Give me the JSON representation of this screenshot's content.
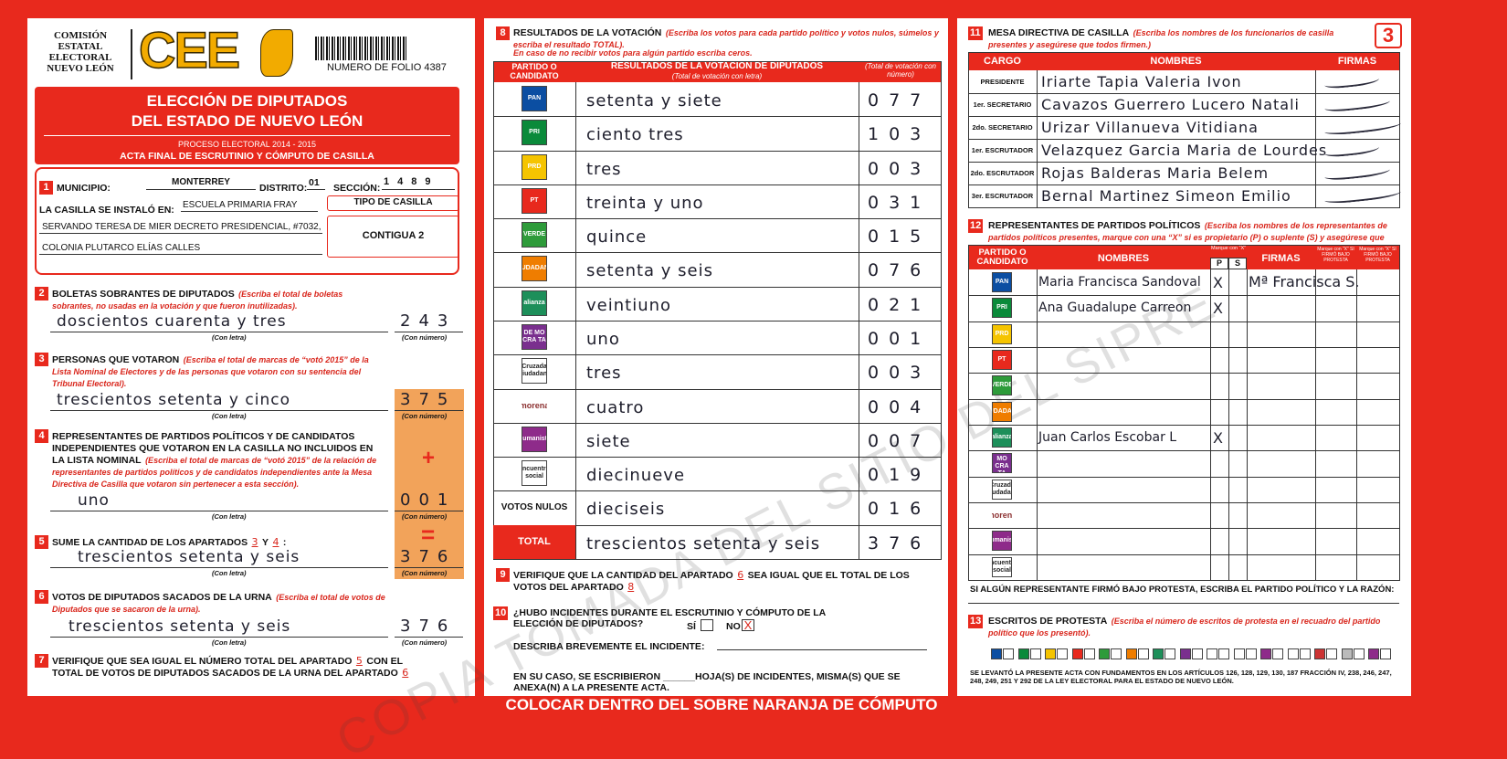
{
  "header": {
    "org": [
      "COMISIÓN",
      "ESTATAL",
      "ELECTORAL",
      "NUEVO LEÓN"
    ],
    "logo": "CEE",
    "folio": "NUMERO DE FOLIO 4387",
    "sheet": "3"
  },
  "title": {
    "line1": "ELECCIÓN DE DIPUTADOS",
    "line2": "DEL ESTADO DE NUEVO LEÓN",
    "process": "PROCESO ELECTORAL 2014 - 2015",
    "acta": "ACTA FINAL DE ESCRUTINIO Y CÓMPUTO DE CASILLA"
  },
  "s1": {
    "num": "1",
    "municipio_label": "MUNICIPIO:",
    "municipio": "MONTERREY",
    "distrito_label": "DISTRITO:",
    "distrito": "01",
    "seccion_label": "SECCIÓN:",
    "seccion": "1489",
    "lugar_label": "LA CASILLA SE INSTALÓ EN:",
    "lugar": [
      "ESCUELA PRIMARIA FRAY",
      "SERVANDO TERESA DE MIER DECRETO PRESIDENCIAL, #7032,",
      "COLONIA PLUTARCO ELÍAS CALLES"
    ],
    "tipo_label": "TIPO DE CASILLA",
    "tipo": "CONTIGUA 2"
  },
  "s2": {
    "num": "2",
    "title": "BOLETAS SOBRANTES DE DIPUTADOS",
    "note": "(Escriba el total de boletas sobrantes, no usadas en la votación y que fueron inutilizadas).",
    "letters": "doscientos cuarenta y tres",
    "number": "243",
    "cap_letters": "(Con letra)",
    "cap_number": "(Con número)"
  },
  "s3": {
    "num": "3",
    "title": "PERSONAS QUE VOTARON",
    "note": "(Escriba el total de marcas de “votó 2015” de la Lista Nominal de Electores y de las personas que votaron con su sentencia del Tribunal Electoral).",
    "letters": "trescientos setenta y cinco",
    "number": "375",
    "cap_letters": "(Con letra)",
    "cap_number": "(Con número)"
  },
  "s4": {
    "num": "4",
    "title": "REPRESENTANTES DE PARTIDOS POLÍTICOS Y DE CANDIDATOS INDEPENDIENTES QUE VOTARON EN LA CASILLA NO INCLUIDOS EN LA LISTA NOMINAL",
    "note": "(Escriba el total de marcas de “votó 2015” de la relación de representantes de partidos políticos y de candidatos independientes ante la Mesa Directiva de Casilla que votaron sin pertenecer a esta sección).",
    "letters": "uno",
    "number": "001",
    "op": "+",
    "cap_letters": "(Con letra)",
    "cap_number": "(Con número)"
  },
  "s5": {
    "num": "5",
    "title": "SUME LA CANTIDAD DE LOS APARTADOS",
    "ref1": "3",
    "and": "Y",
    "ref2": "4",
    "colon": ":",
    "letters": "trescientos setenta y seis",
    "number": "376",
    "op": "=",
    "cap_letters": "(Con letra)",
    "cap_number": "(Con número)"
  },
  "s6": {
    "num": "6",
    "title": "VOTOS DE DIPUTADOS SACADOS DE LA URNA",
    "note": "(Escriba el total de votos de Diputados que se sacaron de la urna).",
    "letters": "trescientos setenta y seis",
    "number": "376",
    "cap_letters": "(Con letra)",
    "cap_number": "(Con número)"
  },
  "s7": {
    "num": "7",
    "text1": "VERIFIQUE QUE SEA IGUAL EL NÚMERO TOTAL DEL APARTADO",
    "ref1": "5",
    "text2": "CON EL TOTAL DE VOTOS DE DIPUTADOS SACADOS DE LA URNA DEL APARTADO",
    "ref2": "6"
  },
  "s8": {
    "num": "8",
    "title": "RESULTADOS DE LA VOTACIÓN",
    "note": "(Escriba los votos para cada partido político y votos nulos, súmelos y escriba el resultado TOTAL).",
    "note2": "En caso de no recibir votos para algún partido escriba ceros.",
    "col_party": "PARTIDO O CANDIDATO",
    "col_letters": "RESULTADOS DE LA VOTACIÓN DE DIPUTADOS",
    "col_letters_sub": "(Total de votación con letra)",
    "col_number": "(Total de votación con número)",
    "rows": [
      {
        "party": "PAN",
        "letters": "setenta y siete",
        "number": "077"
      },
      {
        "party": "PRI",
        "letters": "ciento tres",
        "number": "103"
      },
      {
        "party": "PRD",
        "letters": "tres",
        "number": "003"
      },
      {
        "party": "PT",
        "letters": "treinta y uno",
        "number": "031"
      },
      {
        "party": "VERDE",
        "letters": "quince",
        "number": "015"
      },
      {
        "party": "CIUDADANO",
        "letters": "setenta y seis",
        "number": "076"
      },
      {
        "party": "alianza",
        "letters": "veintiuno",
        "number": "021"
      },
      {
        "party": "DE MO CRA TA",
        "letters": "uno",
        "number": "001"
      },
      {
        "party": "Cruzada Ciudadana",
        "letters": "tres",
        "number": "003"
      },
      {
        "party": "morena",
        "letters": "cuatro",
        "number": "004"
      },
      {
        "party": "Humanista",
        "letters": "siete",
        "number": "007"
      },
      {
        "party": "encuentro social",
        "letters": "diecinueve",
        "number": "019"
      },
      {
        "party": "VOTOS NULOS",
        "letters": "dieciseis",
        "number": "016"
      },
      {
        "party": "TOTAL",
        "letters": "trescientos setenta y seis",
        "number": "376"
      }
    ]
  },
  "s9": {
    "num": "9",
    "text1": "VERIFIQUE QUE LA CANTIDAD DEL APARTADO",
    "ref1": "6",
    "text2": "SEA IGUAL QUE EL TOTAL DE LOS VOTOS DEL APARTADO",
    "ref2": "8"
  },
  "s10": {
    "num": "10",
    "question": "¿HUBO INCIDENTES DURANTE EL ESCRUTINIO Y CÓMPUTO DE LA ELECCIÓN DE DIPUTADOS?",
    "si": "SÍ",
    "no": "NO",
    "mark": "X",
    "describe": "DESCRIBA BREVEMENTE EL INCIDENTE:",
    "anexo": "EN SU CASO, SE ESCRIBIERON ______HOJA(S) DE INCIDENTES, MISMA(S) QUE SE ANEXA(N) A LA PRESENTE ACTA."
  },
  "s11": {
    "num": "11",
    "title": "MESA DIRECTIVA DE CASILLA",
    "note": "(Escriba los nombres de los funcionarios de casilla presentes y asegúrese que todos firmen.)",
    "col_cargo": "CARGO",
    "col_nombres": "NOMBRES",
    "col_firmas": "FIRMAS",
    "rows": [
      {
        "cargo": "PRESIDENTE",
        "nombre": "Iriarte Tapia Valeria Ivon"
      },
      {
        "cargo": "1er. SECRETARIO",
        "nombre": "Cavazos Guerrero Lucero Natali"
      },
      {
        "cargo": "2do. SECRETARIO",
        "nombre": "Urizar Villanueva Vitidiana"
      },
      {
        "cargo": "1er. ESCRUTADOR",
        "nombre": "Velazquez Garcia Maria de Lourdes"
      },
      {
        "cargo": "2do. ESCRUTADOR",
        "nombre": "Rojas Balderas Maria Belem"
      },
      {
        "cargo": "3er. ESCRUTADOR",
        "nombre": "Bernal Martinez Simeon Emilio"
      }
    ]
  },
  "s12": {
    "num": "12",
    "title": "REPRESENTANTES DE PARTIDOS POLÍTICOS",
    "note": "(Escriba los nombres de los representantes de partidos políticos presentes, marque con una “X” si es propietario (P) o suplente (S) y asegúrese que todos firmen).",
    "col_party": "PARTIDO O CANDIDATO",
    "col_nombres": "NOMBRES",
    "col_mark": "Marque con “X”",
    "col_p": "P",
    "col_s": "S",
    "col_firmas": "FIRMAS",
    "col_protesta": "Marque con “X” SI FIRMÓ BAJO PROTESTA",
    "col_protesta2": "Marque con “X” SI FIRMÓ BAJO PROTESTA",
    "rows": [
      {
        "party": "PAN",
        "name": "Maria Francisca Sandoval",
        "p": "X",
        "firma": "Mª Francisca S."
      },
      {
        "party": "PRI",
        "name": "Ana Guadalupe Carreon",
        "p": "X"
      },
      {
        "party": "PRD"
      },
      {
        "party": "PT"
      },
      {
        "party": "VERDE"
      },
      {
        "party": "CIUDADANO"
      },
      {
        "party": "alianza",
        "name": "Juan Carlos Escobar L",
        "p": "X"
      },
      {
        "party": "DE MO CRA TA"
      },
      {
        "party": "Cruzada Ciudadana"
      },
      {
        "party": "morena"
      },
      {
        "party": "Humanista"
      },
      {
        "party": "encuentro social"
      }
    ],
    "protesta_note": "SI ALGÚN REPRESENTANTE FIRMÓ BAJO PROTESTA, ESCRIBA EL PARTIDO POLÍTICO Y LA RAZÓN:"
  },
  "s13": {
    "num": "13",
    "title": "ESCRITOS DE PROTESTA",
    "note": "(Escriba el número de escritos de protesta en el recuadro del partido político que los presentó).",
    "legal": "SE LEVANTÓ LA PRESENTE ACTA CON FUNDAMENTOS EN LOS ARTÍCULOS 126, 128, 129, 130, 187 FRACCIÓN IV, 238, 246, 247, 248, 249, 251 Y 292 DE LA LEY ELECTORAL PARA EL ESTADO DE NUEVO LEÓN."
  },
  "footer": "COLOCAR DENTRO DEL SOBRE NARANJA DE CÓMPUTO",
  "watermark": "COPIA TOMADA DEL SITIO DEL SIPRE"
}
